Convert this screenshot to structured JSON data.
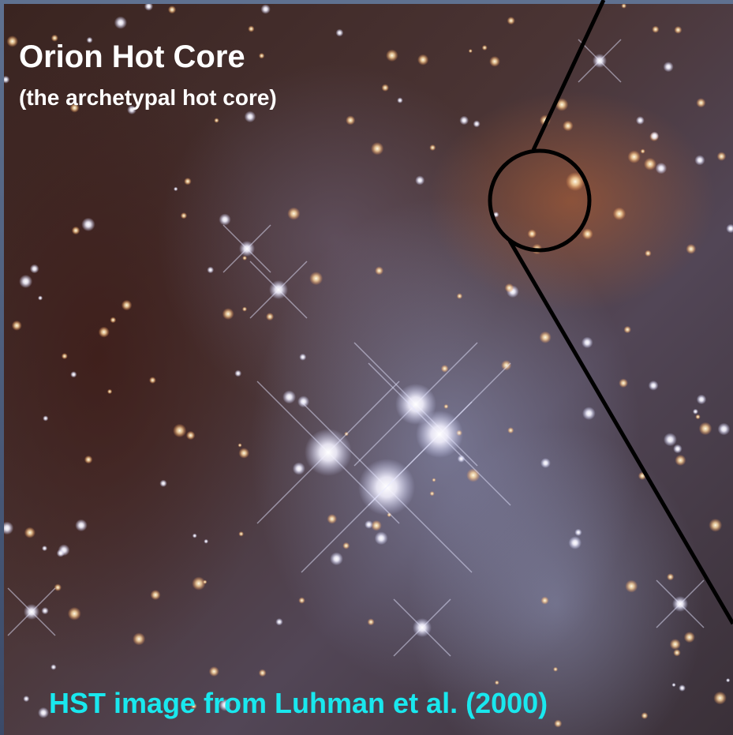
{
  "title": "Orion Hot Core",
  "subtitle": "(the archetypal hot core)",
  "credit": "HST image from Luhman et al. (2000)"
}
